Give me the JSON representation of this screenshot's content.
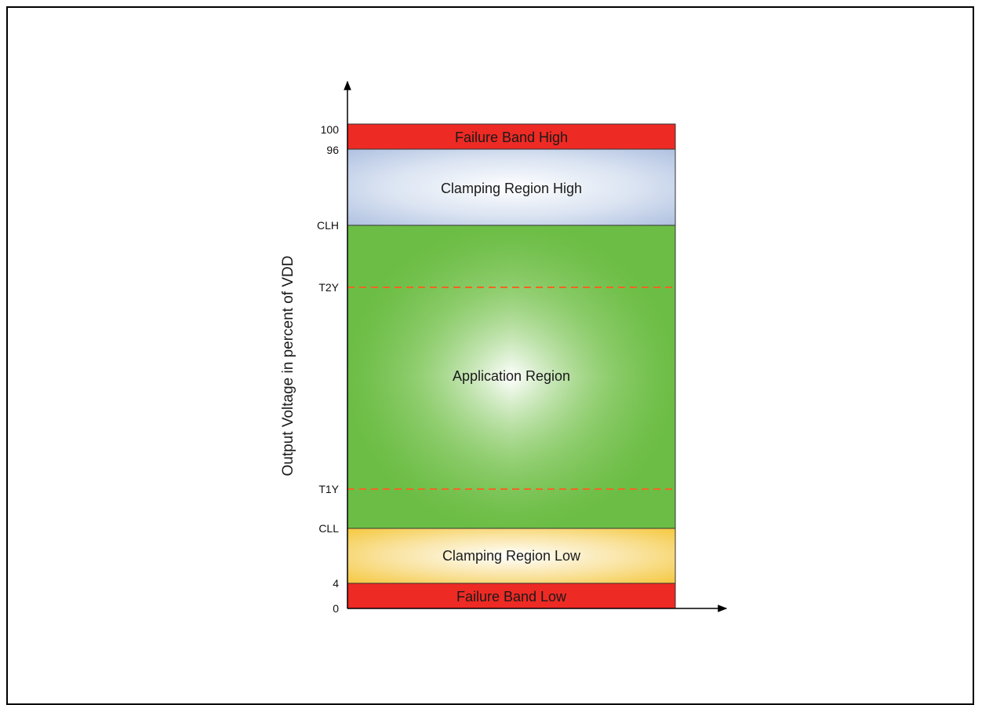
{
  "diagram": {
    "y_axis_label": "Output Voltage in percent of VDD",
    "ticks": [
      "100",
      "96",
      "CLH",
      "T2Y",
      "T1Y",
      "CLL",
      "4",
      "0"
    ],
    "bands": {
      "failure_high": "Failure Band High",
      "clamping_high": "Clamping Region High",
      "application": "Application Region",
      "clamping_low": "Clamping Region Low",
      "failure_low": "Failure Band Low"
    },
    "colors": {
      "failure": "#ee2a24",
      "clamping_high": "#a9bcde",
      "application": "#6cbd45",
      "clamping_low": "#f4c430",
      "threshold_line": "#f26522"
    }
  }
}
